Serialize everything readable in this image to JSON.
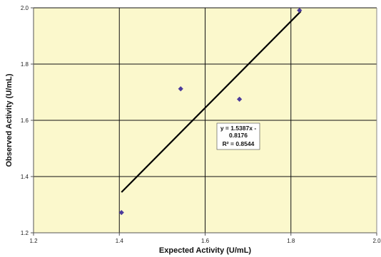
{
  "chart_data": {
    "type": "scatter",
    "xlabel": "Expected Activity (U/mL)",
    "ylabel": "Observed Activity (U/mL)",
    "xlim": [
      1.2,
      2.0
    ],
    "ylim": [
      1.2,
      2.0
    ],
    "x_ticks": [
      1.2,
      1.4,
      1.6,
      1.8,
      2.0
    ],
    "y_ticks": [
      1.2,
      1.4,
      1.6,
      1.8,
      2.0
    ],
    "x_tick_labels": [
      "1.2",
      "1.4",
      "1.6",
      "1.8",
      "2.0"
    ],
    "y_tick_labels": [
      "1.2",
      "1.4",
      "1.6",
      "1.8",
      "2.0"
    ],
    "grid": true,
    "colors": {
      "plot_background": "#fbf8cc",
      "marker": "#4b3a9c",
      "gridline": "#111111",
      "trendline": "#000000"
    },
    "series": [
      {
        "marker": "diamond",
        "points": [
          {
            "x": 1.405,
            "y": 1.272
          },
          {
            "x": 1.543,
            "y": 1.712
          },
          {
            "x": 1.68,
            "y": 1.675
          },
          {
            "x": 1.82,
            "y": 1.991
          }
        ]
      }
    ],
    "trendline": {
      "x_range": [
        1.405,
        1.823
      ],
      "slope": 1.5387,
      "intercept": -0.8176
    },
    "annotation": {
      "line1": "y = 1.5387x -",
      "line2": "0.8176",
      "line3": "R² = 0.8544"
    }
  }
}
